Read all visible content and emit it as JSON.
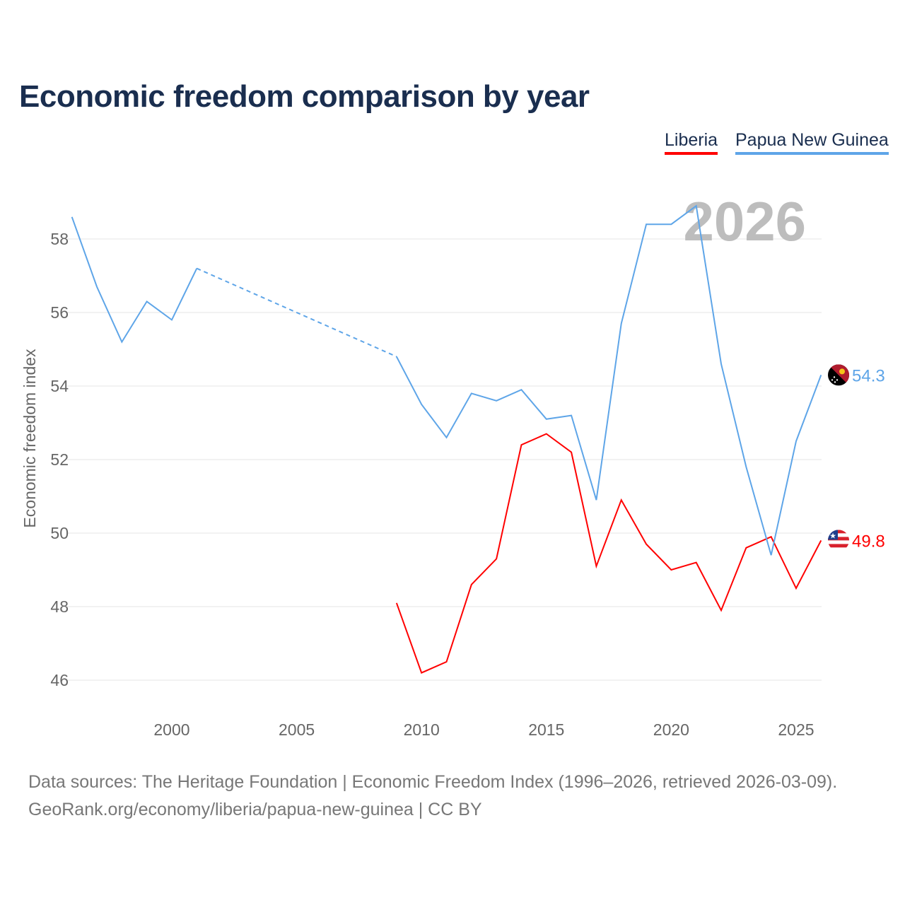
{
  "chart_data": {
    "type": "line",
    "title": "Economic freedom comparison by year",
    "xlabel": "",
    "ylabel": "Economic freedom index",
    "xlim": [
      1996,
      2026
    ],
    "ylim": [
      45.2,
      59.3
    ],
    "grid": true,
    "legend_placement": "top-right",
    "x_ticks": [
      2000,
      2005,
      2010,
      2015,
      2020,
      2025
    ],
    "y_ticks": [
      46,
      48,
      50,
      52,
      54,
      56,
      58
    ],
    "year_watermark": "2026",
    "x": [
      1996,
      1997,
      1998,
      1999,
      2000,
      2001,
      2002,
      2003,
      2004,
      2005,
      2006,
      2007,
      2008,
      2009,
      2010,
      2011,
      2012,
      2013,
      2014,
      2015,
      2016,
      2017,
      2018,
      2019,
      2020,
      2021,
      2022,
      2023,
      2024,
      2025,
      2026
    ],
    "series": [
      {
        "name": "Liberia",
        "color": "#ff0000",
        "end_label": "49.8",
        "flag": "liberia-flag",
        "values": [
          null,
          null,
          null,
          null,
          null,
          null,
          null,
          null,
          null,
          null,
          null,
          null,
          null,
          48.1,
          46.2,
          46.5,
          48.6,
          49.3,
          52.4,
          52.7,
          52.2,
          49.1,
          50.9,
          49.7,
          49.0,
          49.2,
          47.9,
          49.6,
          49.9,
          48.5,
          49.8
        ]
      },
      {
        "name": "Papua New Guinea",
        "color": "#5ea5e8",
        "end_label": "54.3",
        "flag": "papua-new-guinea-flag",
        "values": [
          58.6,
          56.7,
          55.2,
          56.3,
          55.8,
          57.2,
          null,
          null,
          null,
          null,
          null,
          null,
          null,
          54.8,
          53.5,
          52.6,
          53.8,
          53.6,
          53.9,
          53.1,
          53.2,
          50.9,
          55.7,
          58.4,
          58.4,
          58.9,
          54.6,
          51.8,
          49.4,
          52.5,
          54.3
        ]
      }
    ]
  },
  "footer": {
    "line1": "Data sources: The Heritage Foundation | Economic Freedom Index (1996–2026, retrieved 2026-03-09).",
    "line2": "GeoRank.org/economy/liberia/papua-new-guinea | CC BY"
  }
}
